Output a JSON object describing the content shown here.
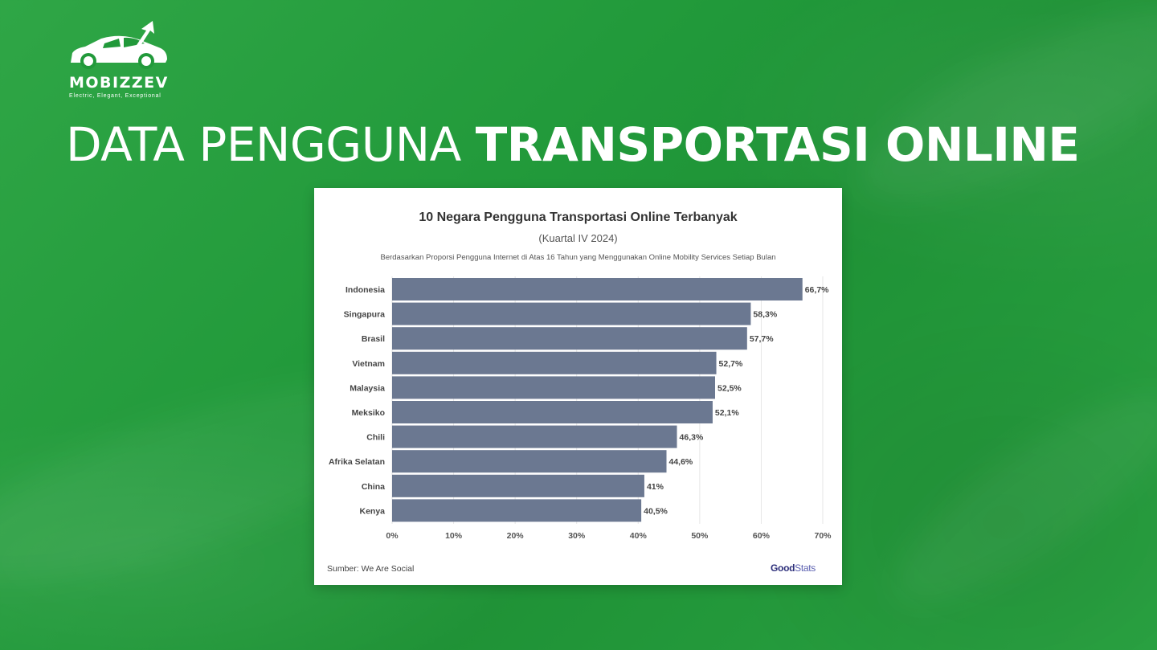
{
  "logo": {
    "name": "MOBIZZEV",
    "tagline": "Electric, Elegant, Exceptional"
  },
  "headline": {
    "light": "DATA PENGGUNA",
    "bold": "TRANSPORTASI ONLINE"
  },
  "chart_data": {
    "type": "bar",
    "orientation": "horizontal",
    "title": "10 Negara Pengguna Transportasi Online Terbanyak",
    "subtitle": "(Kuartal IV 2024)",
    "note": "Berdasarkan Proporsi Pengguna Internet di Atas 16 Tahun yang Menggunakan Online Mobility Services Setiap Bulan",
    "categories": [
      "Indonesia",
      "Singapura",
      "Brasil",
      "Vietnam",
      "Malaysia",
      "Meksiko",
      "Chili",
      "Afrika Selatan",
      "China",
      "Kenya"
    ],
    "values": [
      66.7,
      58.3,
      57.7,
      52.7,
      52.5,
      52.1,
      46.3,
      44.6,
      41,
      40.5
    ],
    "value_labels": [
      "66,7%",
      "58,3%",
      "57,7%",
      "52,7%",
      "52,5%",
      "52,1%",
      "46,3%",
      "44,6%",
      "41%",
      "40,5%"
    ],
    "x_ticks": [
      "0%",
      "10%",
      "20%",
      "30%",
      "40%",
      "50%",
      "60%",
      "70%"
    ],
    "xlim": [
      0,
      70
    ],
    "bar_color": "#6b7891",
    "grid": "vertical",
    "legend": "none",
    "source": "Sumber: We Are Social",
    "brand": {
      "part1": "Good",
      "part2": "Stats"
    }
  }
}
